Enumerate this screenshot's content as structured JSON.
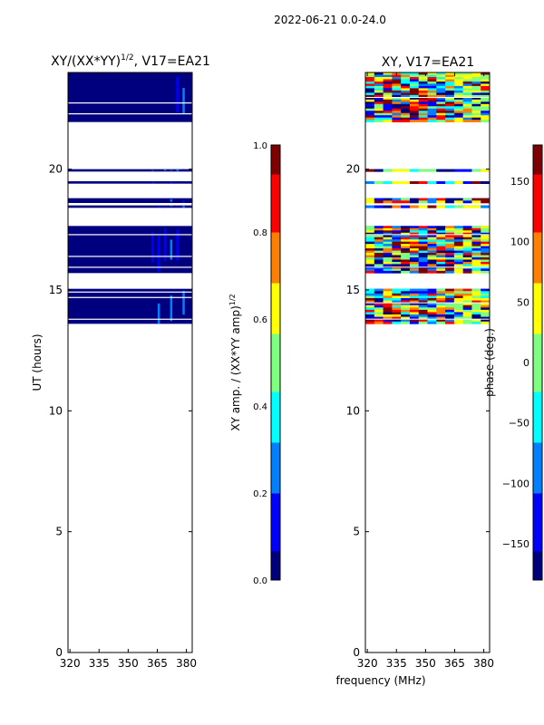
{
  "suptitle": "2022-06-21 0.0-24.0",
  "xlabel_shared": "frequency (MHz)",
  "colors": {
    "jet": [
      "#00007f",
      "#0000ff",
      "#007fff",
      "#00ffff",
      "#7fff7f",
      "#ffff00",
      "#ff7f00",
      "#ff0000",
      "#7f0000"
    ]
  },
  "chart_data": [
    {
      "type": "heatmap",
      "title": "XY/(XX*YY)",
      "title_sup": "1/2",
      "title_suffix": ", V17=EA21",
      "xlabel": "",
      "ylabel": "UT (hours)",
      "xlim": [
        319,
        383
      ],
      "ylim": [
        0,
        24
      ],
      "xticks": [
        320,
        335,
        350,
        365,
        380
      ],
      "yticks": [
        0,
        5,
        10,
        15,
        20
      ],
      "data_bands_hours": [
        [
          13.6,
          15.05
        ],
        [
          15.7,
          17.65
        ],
        [
          18.4,
          18.5
        ],
        [
          18.6,
          18.8
        ],
        [
          19.4,
          19.5
        ],
        [
          19.9,
          20.0
        ],
        [
          21.95,
          24.0
        ]
      ],
      "colorbar": {
        "label": "XY amp. / (XX*YY amp)",
        "label_sup": "1/2",
        "range": [
          0.0,
          1.0
        ],
        "ticks": [
          "0.0",
          "0.2",
          "0.4",
          "0.6",
          "0.8",
          "1.0"
        ]
      }
    },
    {
      "type": "heatmap",
      "title": "XY, V17=EA21",
      "xlabel": "frequency (MHz)",
      "ylabel": "",
      "xlim": [
        319,
        383
      ],
      "ylim": [
        0,
        24
      ],
      "xticks": [
        320,
        335,
        350,
        365,
        380
      ],
      "yticks": [
        0,
        5,
        10,
        15,
        20
      ],
      "data_bands_hours": [
        [
          13.6,
          15.05
        ],
        [
          15.7,
          17.65
        ],
        [
          18.4,
          18.5
        ],
        [
          18.6,
          18.8
        ],
        [
          19.4,
          19.5
        ],
        [
          19.9,
          20.0
        ],
        [
          21.95,
          24.0
        ]
      ],
      "colorbar": {
        "label": "phase (deg.)",
        "range": [
          -180,
          180
        ],
        "ticks": [
          "−150",
          "−100",
          "−50",
          "0",
          "50",
          "100",
          "150"
        ]
      }
    }
  ]
}
